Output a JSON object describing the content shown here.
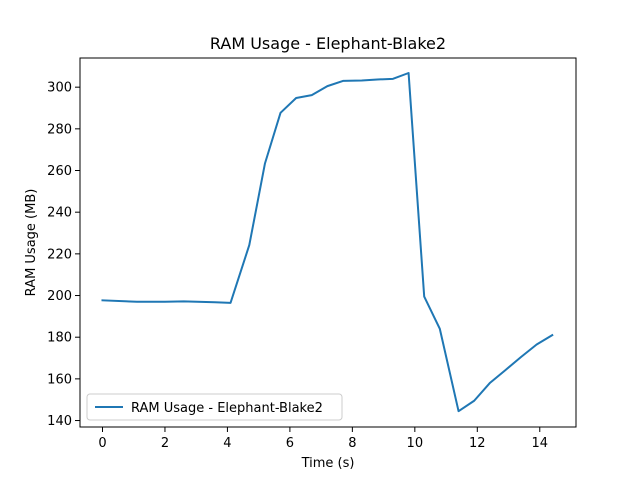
{
  "chart_data": {
    "type": "line",
    "title": "RAM Usage - Elephant-Blake2",
    "xlabel": "Time (s)",
    "ylabel": "RAM Usage (MB)",
    "xlim": [
      -0.72,
      15.16
    ],
    "ylim": [
      136.9,
      314.0
    ],
    "xticks": [
      0,
      2,
      4,
      6,
      8,
      10,
      12,
      14
    ],
    "yticks": [
      140,
      160,
      180,
      200,
      220,
      240,
      260,
      280,
      300
    ],
    "grid": false,
    "legend_position": "lower-left",
    "series": [
      {
        "name": "RAM Usage - Elephant-Blake2",
        "color": "#1f77b4",
        "x": [
          0.0,
          1.1,
          2.0,
          2.6,
          3.6,
          4.1,
          4.7,
          5.2,
          5.7,
          6.2,
          6.7,
          7.2,
          7.7,
          8.3,
          8.8,
          9.3,
          9.8,
          10.3,
          10.8,
          11.4,
          11.9,
          12.4,
          12.9,
          13.4,
          13.9,
          14.4
        ],
        "y": [
          197.7,
          197.0,
          197.0,
          197.2,
          196.8,
          196.5,
          224.2,
          263.3,
          287.7,
          294.8,
          296.2,
          300.5,
          303.0,
          303.2,
          303.7,
          304.0,
          306.8,
          199.5,
          184.0,
          144.5,
          149.5,
          158.0,
          164.2,
          170.5,
          176.5,
          181.0
        ]
      }
    ]
  }
}
